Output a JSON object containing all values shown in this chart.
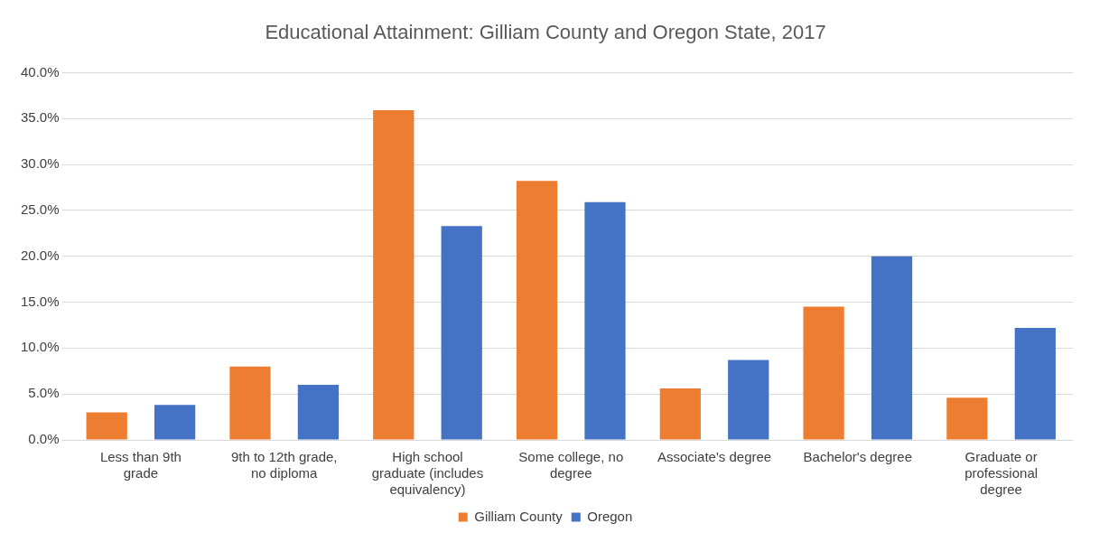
{
  "chart_data": {
    "type": "bar",
    "title": "Educational Attainment: Gilliam County and Oregon State, 2017",
    "categories": [
      "Less than 9th grade",
      "9th to 12th grade, no diploma",
      "High school graduate (includes equivalency)",
      "Some college, no degree",
      "Associate's degree",
      "Bachelor's degree",
      "Graduate or professional degree"
    ],
    "series": [
      {
        "name": "Gilliam County",
        "color": "#ed7d31",
        "values": [
          3.0,
          8.0,
          35.9,
          28.2,
          5.6,
          14.5,
          4.6
        ]
      },
      {
        "name": "Oregon",
        "color": "#4472c4",
        "values": [
          3.8,
          6.0,
          23.3,
          25.9,
          8.7,
          20.0,
          12.2
        ]
      }
    ],
    "ylim": [
      0,
      40
    ],
    "yticks": [
      {
        "value": 0,
        "label": "0.0%"
      },
      {
        "value": 5,
        "label": "5.0%"
      },
      {
        "value": 10,
        "label": "10.0%"
      },
      {
        "value": 15,
        "label": "15.0%"
      },
      {
        "value": 20,
        "label": "20.0%"
      },
      {
        "value": 25,
        "label": "25.0%"
      },
      {
        "value": 30,
        "label": "30.0%"
      },
      {
        "value": 35,
        "label": "35.0%"
      },
      {
        "value": 40,
        "label": "40.0%"
      }
    ],
    "grid": "y",
    "legend": "bottom"
  }
}
